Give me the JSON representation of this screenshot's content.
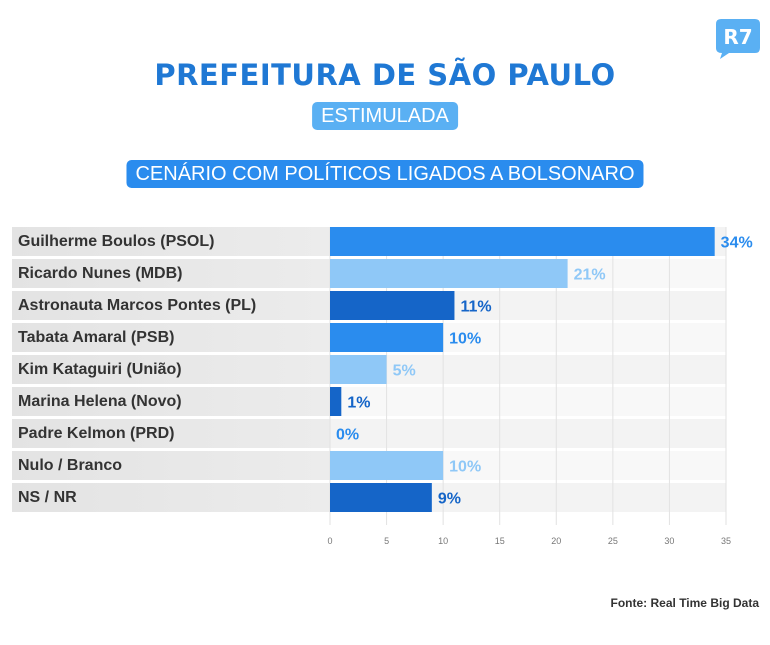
{
  "brand": {
    "logo_text": "R7",
    "logo_color": "#5ab0f3"
  },
  "header": {
    "title": "PREFEITURA DE SÃO PAULO",
    "subtitle": "ESTIMULADA",
    "scenario": "CENÁRIO COM POLÍTICOS LIGADOS A BOLSONARO"
  },
  "chart_data": {
    "type": "bar",
    "orientation": "horizontal",
    "categories": [
      "Guilherme Boulos (PSOL)",
      "Ricardo Nunes (MDB)",
      "Astronauta Marcos Pontes (PL)",
      "Tabata Amaral (PSB)",
      "Kim Kataguiri (União)",
      "Marina Helena (Novo)",
      "Padre Kelmon (PRD)",
      "Nulo / Branco",
      "NS / NR"
    ],
    "values": [
      34,
      21,
      11,
      10,
      5,
      1,
      0,
      10,
      9
    ],
    "value_labels": [
      "34%",
      "21%",
      "11%",
      "10%",
      "5%",
      "1%",
      "0%",
      "10%",
      "9%"
    ],
    "bar_colors": [
      "#2a8cee",
      "#8fc8f7",
      "#1565c8",
      "#2a8cee",
      "#8fc8f7",
      "#1565c8",
      "#2a8cee",
      "#8fc8f7",
      "#1565c8"
    ],
    "xlim": [
      0,
      35
    ],
    "xticks": [
      0,
      5,
      10,
      15,
      20,
      25,
      30,
      35
    ],
    "grid": true
  },
  "footer": {
    "source": "Fonte: Real Time Big Data"
  }
}
